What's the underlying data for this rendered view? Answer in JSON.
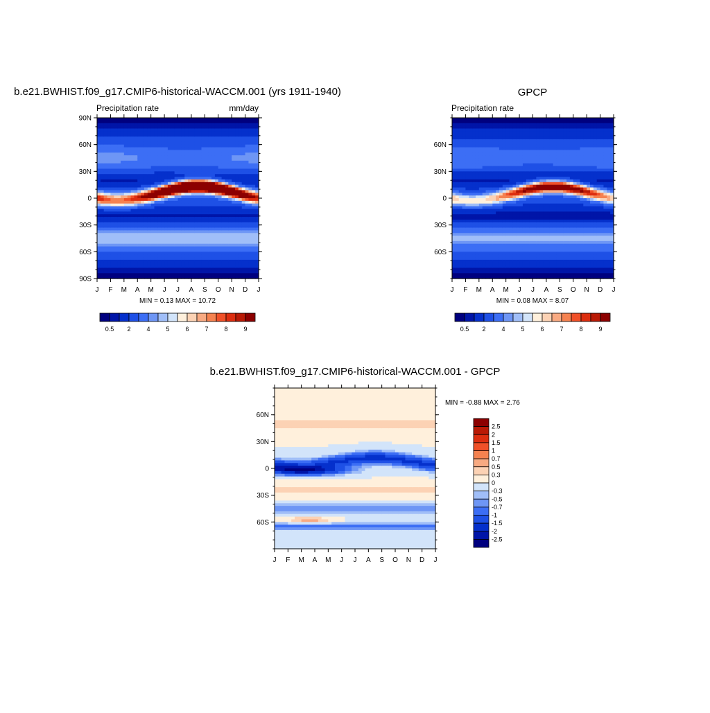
{
  "chart_data": [
    {
      "type": "heatmap",
      "title": "b.e21.BWHIST.f09_g17.CMIP6-historical-WACCM.001 (yrs 1911-1940)",
      "subtitle_left": "Precipitation rate",
      "subtitle_right": "mm/day",
      "x_ticks": [
        "J",
        "F",
        "M",
        "A",
        "M",
        "J",
        "J",
        "A",
        "S",
        "O",
        "N",
        "D",
        "J"
      ],
      "y_ticks": [
        "90N",
        "60N",
        "30N",
        "0",
        "30S",
        "60S",
        "90S"
      ],
      "y_tick_values": [
        90,
        60,
        30,
        0,
        -30,
        -60,
        -90
      ],
      "ylim": [
        -90,
        90
      ],
      "stats": "MIN =   0.13 MAX =  10.72",
      "colorbar": {
        "orientation": "horizontal",
        "labels": [
          "0.5",
          "2",
          "4",
          "5",
          "6",
          "7",
          "8",
          "9"
        ],
        "colors": [
          "#00007f",
          "#0015a8",
          "#0530cc",
          "#1e50e6",
          "#3c6ef5",
          "#6e96f5",
          "#a0bef8",
          "#d2e4fa",
          "#fff0dc",
          "#fcd2b4",
          "#f8aa82",
          "#f58250",
          "#f05028",
          "#dc2d0f",
          "#b91905",
          "#8c0000"
        ]
      },
      "fields": {
        "itcz_peak": 10.72,
        "itcz_amp": 5.2,
        "itcz_off": 5.6,
        "hemi_shift": 0,
        "mid_lat": 4.2,
        "base": 2.3,
        "south_bias": 0
      }
    },
    {
      "type": "heatmap",
      "title": "GPCP",
      "subtitle_left": "Precipitation rate",
      "x_ticks": [
        "J",
        "F",
        "M",
        "A",
        "M",
        "J",
        "J",
        "A",
        "S",
        "O",
        "N",
        "D",
        "J"
      ],
      "y_ticks": [
        "60N",
        "30N",
        "0",
        "30S",
        "60S"
      ],
      "y_tick_values": [
        60,
        30,
        0,
        -30,
        -60
      ],
      "ylim": [
        -90,
        90
      ],
      "stats": "MIN =   0.08 MAX =   8.07",
      "colorbar": {
        "orientation": "horizontal",
        "labels": [
          "0.5",
          "2",
          "4",
          "5",
          "6",
          "7",
          "8",
          "9"
        ],
        "colors": [
          "#00007f",
          "#0015a8",
          "#0530cc",
          "#1e50e6",
          "#3c6ef5",
          "#6e96f5",
          "#a0bef8",
          "#d2e4fa",
          "#fff0dc",
          "#fcd2b4",
          "#f8aa82",
          "#f58250",
          "#f05028",
          "#dc2d0f",
          "#b91905",
          "#8c0000"
        ]
      },
      "fields": {
        "itcz_peak": 8.07,
        "itcz_amp": 3.6,
        "itcz_off": 5.2,
        "hemi_shift": 0,
        "mid_lat": 4.0,
        "base": 2.2,
        "south_bias": 0
      }
    },
    {
      "type": "heatmap",
      "title": "b.e21.BWHIST.f09_g17.CMIP6-historical-WACCM.001 - GPCP",
      "x_ticks": [
        "J",
        "F",
        "M",
        "A",
        "M",
        "J",
        "J",
        "A",
        "S",
        "O",
        "N",
        "D",
        "J"
      ],
      "y_ticks": [
        "60N",
        "30N",
        "0",
        "30S",
        "60S"
      ],
      "y_tick_values": [
        60,
        30,
        0,
        -30,
        -60
      ],
      "ylim": [
        -90,
        90
      ],
      "stats": "MIN =  -0.88 MAX =   2.76",
      "colorbar": {
        "orientation": "vertical",
        "labels": [
          "2.5",
          "2",
          "1.5",
          "1",
          "0.7",
          "0.5",
          "0.3",
          "0",
          "-0.3",
          "-0.5",
          "-0.7",
          "-1",
          "-1.5",
          "-2",
          "-2.5"
        ],
        "colors": [
          "#8c0000",
          "#b91905",
          "#dc2d0f",
          "#f05028",
          "#f58250",
          "#f8aa82",
          "#fcd2b4",
          "#fff0dc",
          "#d2e4fa",
          "#a0bef8",
          "#6e96f5",
          "#3c6ef5",
          "#1e50e6",
          "#0530cc",
          "#0015a8",
          "#00007f"
        ]
      }
    }
  ]
}
